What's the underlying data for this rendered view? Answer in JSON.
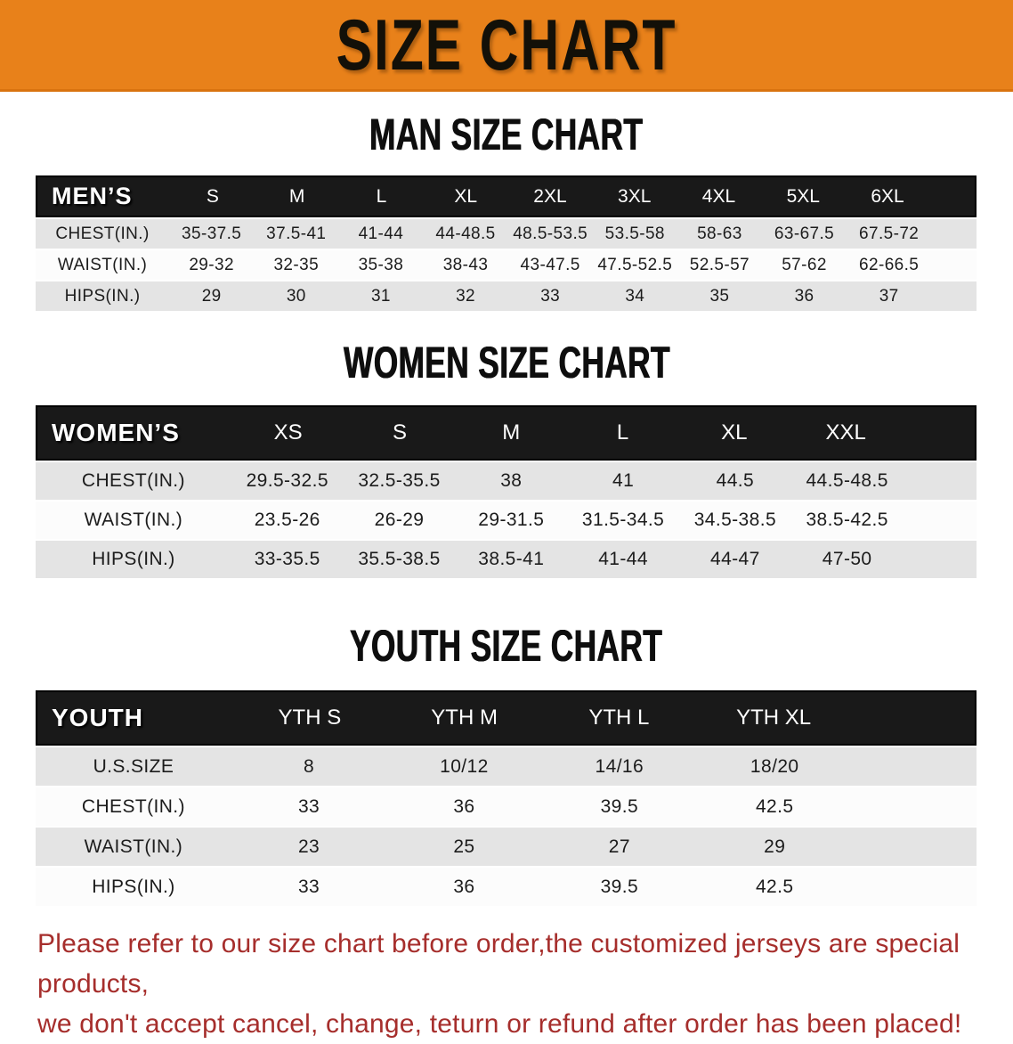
{
  "banner": {
    "title": "SIZE CHART"
  },
  "colors": {
    "banner_orange": "#E8811A",
    "header_black": "#191919",
    "row_gray": "#E4E4E4",
    "row_white": "#FCFCFC",
    "footer_red": "#A62E2C"
  },
  "chart_data": [
    {
      "type": "table",
      "id": "men",
      "heading": "MAN SIZE CHART",
      "corner_label": "MEN’S",
      "columns": [
        "S",
        "M",
        "L",
        "XL",
        "2XL",
        "3XL",
        "4XL",
        "5XL",
        "6XL"
      ],
      "rows": [
        {
          "label": "CHEST(IN.)",
          "values": [
            "35-37.5",
            "37.5-41",
            "41-44",
            "44-48.5",
            "48.5-53.5",
            "53.5-58",
            "58-63",
            "63-67.5",
            "67.5-72"
          ]
        },
        {
          "label": "WAIST(IN.)",
          "values": [
            "29-32",
            "32-35",
            "35-38",
            "38-43",
            "43-47.5",
            "47.5-52.5",
            "52.5-57",
            "57-62",
            "62-66.5"
          ]
        },
        {
          "label": "HIPS(IN.)",
          "values": [
            "29",
            "30",
            "31",
            "32",
            "33",
            "34",
            "35",
            "36",
            "37"
          ]
        }
      ]
    },
    {
      "type": "table",
      "id": "women",
      "heading": "WOMEN SIZE CHART",
      "corner_label": "WOMEN’S",
      "columns": [
        "XS",
        "S",
        "M",
        "L",
        "XL",
        "XXL"
      ],
      "rows": [
        {
          "label": "CHEST(IN.)",
          "values": [
            "29.5-32.5",
            "32.5-35.5",
            "38",
            "41",
            "44.5",
            "44.5-48.5"
          ]
        },
        {
          "label": "WAIST(IN.)",
          "values": [
            "23.5-26",
            "26-29",
            "29-31.5",
            "31.5-34.5",
            "34.5-38.5",
            "38.5-42.5"
          ]
        },
        {
          "label": "HIPS(IN.)",
          "values": [
            "33-35.5",
            "35.5-38.5",
            "38.5-41",
            "41-44",
            "44-47",
            "47-50"
          ]
        }
      ]
    },
    {
      "type": "table",
      "id": "youth",
      "heading": "YOUTH SIZE CHART",
      "corner_label": "YOUTH",
      "columns": [
        "YTH S",
        "YTH M",
        "YTH L",
        "YTH XL"
      ],
      "rows": [
        {
          "label": "U.S.SIZE",
          "values": [
            "8",
            "10/12",
            "14/16",
            "18/20"
          ]
        },
        {
          "label": "CHEST(IN.)",
          "values": [
            "33",
            "36",
            "39.5",
            "42.5"
          ]
        },
        {
          "label": "WAIST(IN.)",
          "values": [
            "23",
            "25",
            "27",
            "29"
          ]
        },
        {
          "label": "HIPS(IN.)",
          "values": [
            "33",
            "36",
            "39.5",
            "42.5"
          ]
        }
      ]
    }
  ],
  "footer": {
    "line1": "Please refer to our size chart before order,the customized jerseys are special products,",
    "line2": "we don't accept cancel, change, teturn or refund after order has been placed!"
  }
}
